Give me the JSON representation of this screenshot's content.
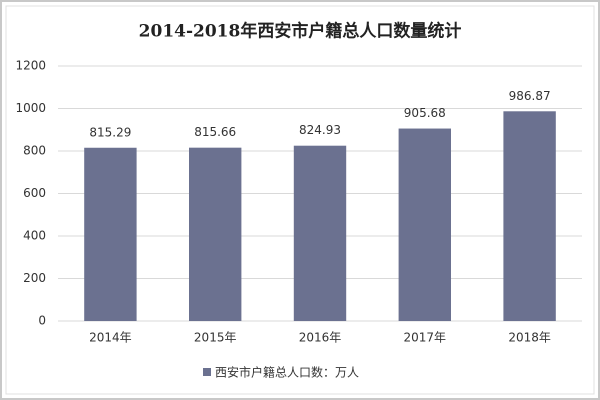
{
  "chart_data": {
    "type": "bar",
    "title": "2014-2018年西安市户籍总人口数量统计",
    "categories": [
      "2014年",
      "2015年",
      "2016年",
      "2017年",
      "2018年"
    ],
    "series": [
      {
        "name": "西安市户籍总人口数：万人",
        "color": "#6b7190",
        "values": [
          815.29,
          815.66,
          824.93,
          905.68,
          986.87
        ]
      }
    ],
    "ylim": [
      0,
      1200
    ],
    "yticks": [
      0,
      200,
      400,
      600,
      800,
      1000,
      1200
    ],
    "grid": true,
    "legend": "bottom"
  }
}
